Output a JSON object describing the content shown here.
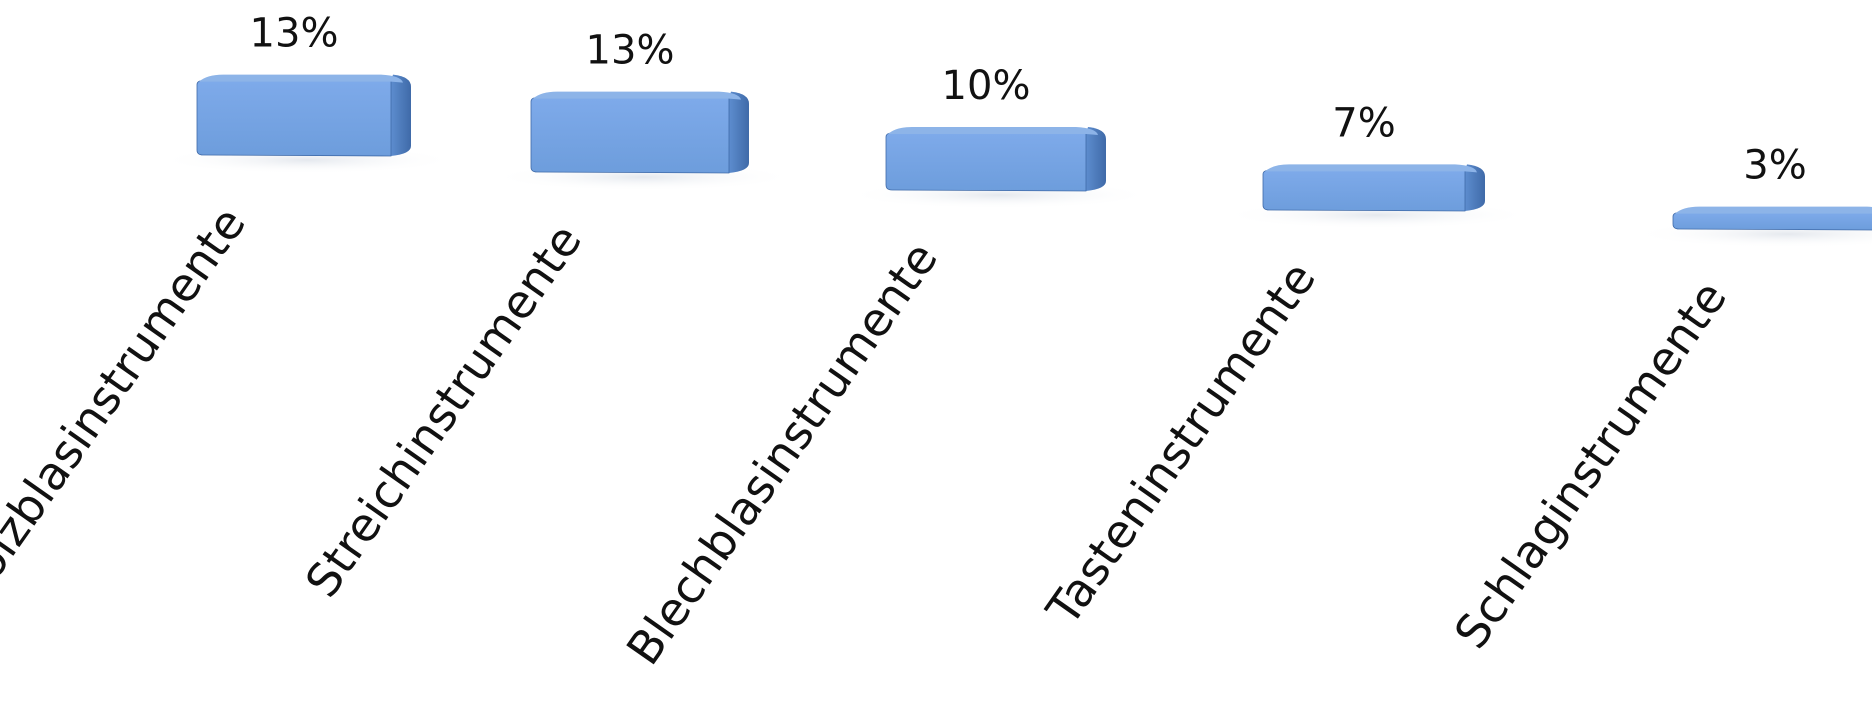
{
  "chart_data": {
    "type": "bar",
    "style": "3d-cylinder-slab",
    "categories": [
      "Holzblasinstrumente",
      "Streichinstrumente",
      "Blechblasinstrumente",
      "Tasteninstrumente",
      "Schlaginstrumente"
    ],
    "values": [
      13,
      13,
      10,
      7,
      3
    ],
    "value_labels": [
      "13%",
      "13%",
      "10%",
      "7%",
      "3%"
    ],
    "unit": "%",
    "title": "",
    "xlabel": "",
    "ylabel": "",
    "grid": false,
    "legend": "none",
    "colors": {
      "bar_top": "#8db4e8",
      "bar_front": "#6f9fde",
      "bar_side": "#4f7fc0",
      "bar_outline": "#3f6aa8"
    }
  }
}
